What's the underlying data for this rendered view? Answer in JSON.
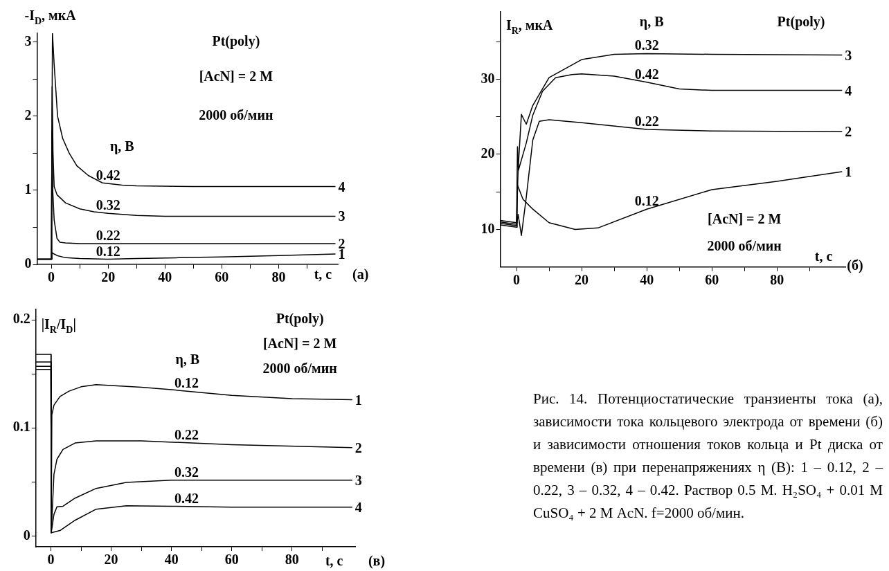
{
  "chart_data": [
    {
      "type": "line",
      "ylabel": "-I$_{D}$, мкА",
      "xlabel": "t, с",
      "legend_title": "η, В",
      "xlim": [
        -5,
        101
      ],
      "ylim": [
        0,
        3.12
      ],
      "xticks": [
        0,
        {
          "value": 10,
          "label": null
        },
        20,
        {
          "value": 30,
          "label": null
        },
        40,
        {
          "value": 50,
          "label": null
        },
        60,
        {
          "value": 70,
          "label": null
        },
        80,
        {
          "value": 90,
          "label": null
        }
      ],
      "yticks": [
        0,
        {
          "value": 0.5,
          "label": null
        },
        1,
        {
          "value": 1.5,
          "label": null
        },
        2,
        {
          "value": 2.5,
          "label": null
        },
        3
      ],
      "series": [
        {
          "name": "0.12",
          "color": "#000000",
          "x": [
            -5,
            0,
            0.2,
            1,
            2,
            5,
            10,
            20,
            30,
            45,
            60,
            80,
            100
          ],
          "values": [
            0.07,
            0.07,
            0.16,
            0.14,
            0.12,
            0.09,
            0.08,
            0.07,
            0.08,
            0.09,
            0.1,
            0.12,
            0.14
          ]
        },
        {
          "name": "0.22",
          "color": "#000000",
          "x": [
            -5,
            0,
            0.2,
            0.5,
            1,
            2,
            3,
            5,
            10,
            30,
            60,
            100
          ],
          "values": [
            0.07,
            0.07,
            1.8,
            1.0,
            0.6,
            0.35,
            0.3,
            0.29,
            0.28,
            0.28,
            0.28,
            0.28
          ]
        },
        {
          "name": "0.32",
          "color": "#000000",
          "x": [
            -5,
            0,
            0.3,
            0.6,
            1,
            2,
            5,
            10,
            15,
            20,
            30,
            40,
            100
          ],
          "values": [
            0.07,
            0.07,
            2.4,
            1.5,
            1.05,
            0.94,
            0.83,
            0.75,
            0.71,
            0.69,
            0.66,
            0.65,
            0.65
          ]
        },
        {
          "name": "0.42",
          "color": "#000000",
          "x": [
            -5,
            0,
            0.4,
            1,
            2.2,
            4,
            6.3,
            9,
            13,
            18,
            25,
            30,
            50,
            100
          ],
          "values": [
            0.07,
            0.07,
            3.12,
            2.7,
            2.0,
            1.7,
            1.5,
            1.33,
            1.2,
            1.1,
            1.07,
            1.06,
            1.05,
            1.05
          ]
        }
      ],
      "annotations": [
        "Pt(poly)",
        "[AcN] = 2 M",
        "2000 об/мин",
        "(а)",
        "1",
        "2",
        "3",
        "4"
      ]
    },
    {
      "type": "line",
      "ylabel": "I$_{R}$, мкА",
      "xlabel": "t, с",
      "legend_title": "η, В",
      "xlim": [
        -5,
        101
      ],
      "ylim": [
        5,
        39
      ],
      "xticks": [
        0,
        {
          "value": 10,
          "label": null
        },
        20,
        {
          "value": 30,
          "label": null
        },
        40,
        {
          "value": 50,
          "label": null
        },
        60,
        {
          "value": 70,
          "label": null
        },
        80,
        {
          "value": 90,
          "label": null
        }
      ],
      "yticks": [
        10,
        {
          "value": 15,
          "label": null
        },
        20,
        {
          "value": 25,
          "label": null
        },
        30,
        {
          "value": 35,
          "label": null
        }
      ],
      "series": [
        {
          "name": "0.12",
          "color": "#000000",
          "x": [
            -5,
            0,
            0.2,
            2,
            5,
            10,
            18,
            25,
            40,
            60,
            80,
            100
          ],
          "values": [
            10.6,
            10.3,
            16,
            14,
            12.7,
            10.9,
            10.0,
            10.2,
            12.7,
            15.3,
            16.4,
            17.7
          ]
        },
        {
          "name": "0.22",
          "color": "#000000",
          "x": [
            -5,
            0,
            0.5,
            1.5,
            3,
            5,
            7,
            10,
            20,
            40,
            60,
            100
          ],
          "values": [
            10.8,
            10.5,
            12,
            9.2,
            14.3,
            21.9,
            24.4,
            24.6,
            24.2,
            23.3,
            23.1,
            23.0
          ]
        },
        {
          "name": "0.32",
          "color": "#000000",
          "x": [
            -5,
            0,
            0.5,
            1.5,
            3,
            5,
            10,
            20,
            30,
            40,
            60,
            100
          ],
          "values": [
            11.2,
            10.9,
            18,
            25.3,
            24.0,
            26.5,
            30.2,
            32.6,
            33.3,
            33.4,
            33.3,
            33.2
          ]
        },
        {
          "name": "0.42",
          "color": "#000000",
          "x": [
            -5,
            0,
            0.3,
            0.6,
            3,
            5,
            8,
            12,
            17,
            20,
            30,
            40,
            50,
            60,
            100
          ],
          "values": [
            11.0,
            10.7,
            21,
            17.9,
            21.5,
            25.2,
            28.4,
            30.2,
            30.6,
            30.7,
            30.4,
            29.6,
            28.7,
            28.5,
            28.5
          ]
        }
      ],
      "annotations": [
        "Pt(poly)",
        "[AcN] = 2 M",
        "2000 об/мин",
        "(б)",
        "1",
        "2",
        "3",
        "4"
      ]
    },
    {
      "type": "line",
      "ylabel": "|I$_{R}$/I$_{D}$|",
      "xlabel": "t, с",
      "legend_title": "η, В",
      "xlim": [
        -5,
        101
      ],
      "ylim": [
        -0.01,
        0.21
      ],
      "xticks": [
        0,
        {
          "value": 10,
          "label": null
        },
        20,
        {
          "value": 30,
          "label": null
        },
        40,
        {
          "value": 50,
          "label": null
        },
        60,
        {
          "value": 70,
          "label": null
        },
        80,
        {
          "value": 90,
          "label": null
        }
      ],
      "yticks": [
        0,
        {
          "value": 0.05,
          "label": null
        },
        0.1,
        {
          "value": 0.15,
          "label": null
        },
        0.2
      ],
      "series": [
        {
          "name": "0.12",
          "color": "#000000",
          "x": [
            -5,
            0,
            0.1,
            0.3,
            1,
            3,
            6,
            10,
            15,
            30,
            40,
            60,
            80,
            100
          ],
          "values": [
            0.154,
            0.154,
            0.003,
            0.112,
            0.121,
            0.129,
            0.134,
            0.138,
            0.14,
            0.1376,
            0.1353,
            0.13,
            0.127,
            0.126
          ]
        },
        {
          "name": "0.22",
          "color": "#000000",
          "x": [
            -5,
            0,
            0.1,
            1,
            2,
            4,
            8,
            15,
            30,
            60,
            100
          ],
          "values": [
            0.157,
            0.157,
            0.003,
            0.057,
            0.071,
            0.08,
            0.086,
            0.088,
            0.088,
            0.0844,
            0.0817
          ]
        },
        {
          "name": "0.32",
          "color": "#000000",
          "x": [
            -5,
            0,
            0.1,
            1,
            2,
            4,
            8,
            15,
            25,
            40,
            100
          ],
          "values": [
            0.161,
            0.161,
            0.003,
            0.02,
            0.027,
            0.0275,
            0.035,
            0.044,
            0.0495,
            0.0516,
            0.0516
          ]
        },
        {
          "name": "0.42",
          "color": "#000000",
          "x": [
            -5,
            0,
            0.1,
            3,
            8,
            15,
            25,
            40,
            60,
            100
          ],
          "values": [
            0.168,
            0.168,
            0.003,
            0.005,
            0.0145,
            0.0248,
            0.028,
            0.0275,
            0.0266,
            0.0266
          ]
        }
      ],
      "annotations": [
        "Pt(poly)",
        "[AcN] = 2 M",
        "2000 об/мин",
        "(в)",
        "1",
        "2",
        "3",
        "4"
      ]
    },
    {
      "type": "other",
      "annotations": [
        "Рис. 14. Потенциостатические транзиенты тока (а), зависимости тока кольцевого электрода от времени (б) и зависимости отношения токов кольца и Pt диска от времени (в) при перенапряжениях η (В): 1 – 0.12, 2 – 0.22, 3 – 0.32, 4 – 0.42. Раствор 0.5 М. H₂SO₄ + 0.01 М CuSO₄ + 2 М AcN. f=2000 об/мин."
      ]
    }
  ]
}
